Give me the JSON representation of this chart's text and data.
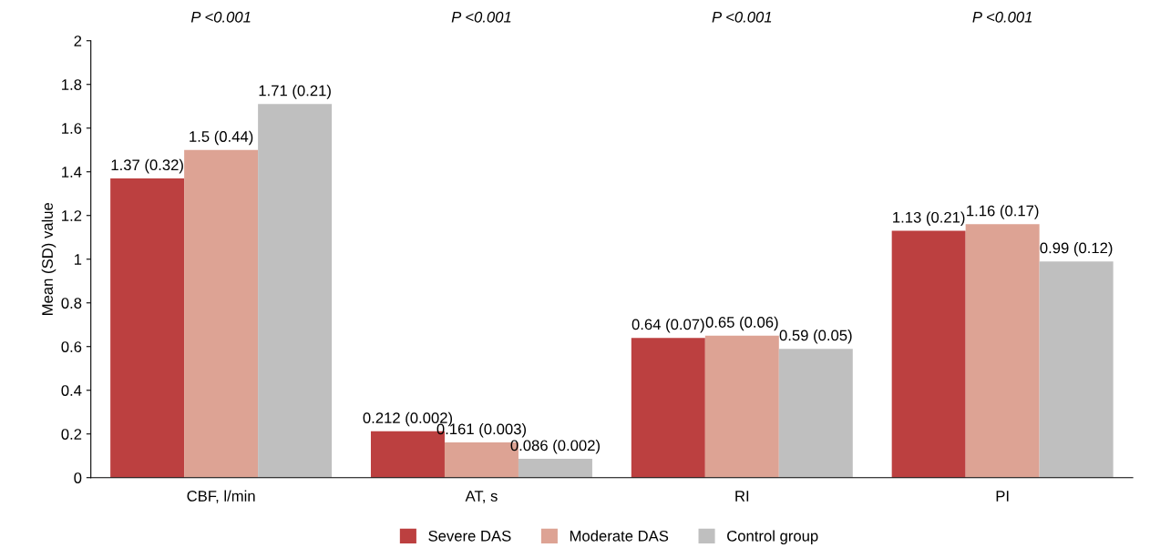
{
  "chart_data": {
    "type": "bar",
    "ylabel": "Mean (SD) value",
    "categories": [
      "CBF, l/min",
      "AT, s",
      "RI",
      "PI"
    ],
    "series": [
      {
        "name": "Severe DAS",
        "color": "#bc4040",
        "values": [
          1.37,
          0.212,
          0.64,
          1.13
        ],
        "value_labels": [
          "1.37 (0.32)",
          "0.212 (0.002)",
          "0.64 (0.07)",
          "1.13 (0.21)"
        ]
      },
      {
        "name": "Moderate DAS",
        "color": "#dda394",
        "values": [
          1.5,
          0.161,
          0.65,
          1.16
        ],
        "value_labels": [
          "1.5 (0.44)",
          "0.161 (0.003)",
          "0.65 (0.06)",
          "1.16 (0.17)"
        ]
      },
      {
        "name": "Control group",
        "color": "#bfbfbf",
        "values": [
          1.71,
          0.086,
          0.59,
          0.99
        ],
        "value_labels": [
          "1.71 (0.21)",
          "0.086 (0.002)",
          "0.59 (0.05)",
          "0.99 (0.12)"
        ]
      }
    ],
    "annotations": [
      "P <0.001",
      "P <0.001",
      "P <0.001",
      "P <0.001"
    ],
    "ylim": [
      0,
      2
    ],
    "yticks": [
      0,
      0.2,
      0.4,
      0.6,
      0.8,
      1,
      1.2,
      1.4,
      1.6,
      1.8,
      2
    ],
    "grid": false,
    "legend": "bottom"
  }
}
